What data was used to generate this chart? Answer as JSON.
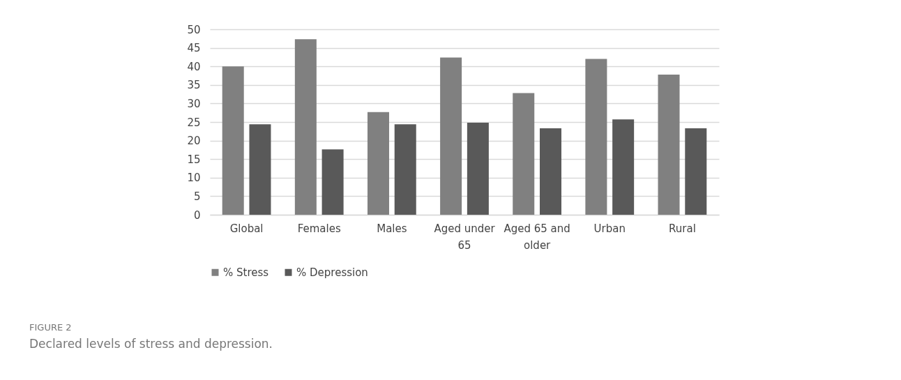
{
  "chart_data": {
    "type": "bar",
    "title": "Declared levels of stress and depression.",
    "annotations": [
      "FIGURE 2"
    ],
    "categories": [
      "Global",
      "Females",
      "Males",
      "Aged under 65",
      "Aged 65 and older",
      "Urban",
      "Rural"
    ],
    "series": [
      {
        "name": "% Stress",
        "color": "#808080",
        "values": [
          40,
          47.3,
          27.7,
          42.4,
          32.8,
          42,
          37.8
        ]
      },
      {
        "name": "% Depression",
        "color": "#595959",
        "values": [
          24.4,
          17.6,
          24.4,
          24.8,
          23.3,
          25.7,
          23.3
        ]
      }
    ],
    "ylim": [
      0,
      50
    ],
    "yticks": [
      0,
      5,
      10,
      15,
      20,
      25,
      30,
      35,
      40,
      45,
      50
    ],
    "grid": "y",
    "legend": "bottom"
  }
}
